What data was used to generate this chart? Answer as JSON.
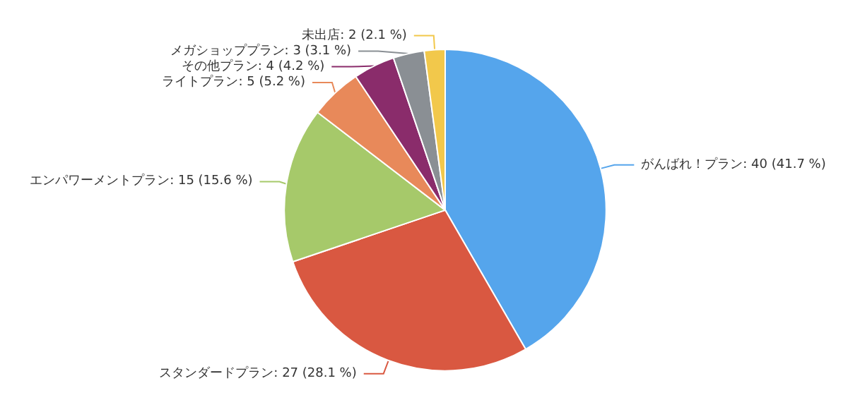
{
  "chart_data": {
    "type": "pie",
    "categories": [
      "がんばれ！プラン",
      "スタンダードプラン",
      "エンパワーメントプラン",
      "ライトプラン",
      "その他プラン",
      "メガショッププラン",
      "未出店"
    ],
    "values": [
      40,
      27,
      15,
      5,
      4,
      3,
      2
    ],
    "value_labels": [
      "40 (41.7 %)",
      "27 (28.1 %)",
      "15 (15.6 %)",
      "5 (5.2 %)",
      "4 (4.2 %)",
      "3 (3.1 %)",
      "2 (2.1 %)"
    ],
    "colors": [
      "#55a5ec",
      "#d95841",
      "#a6c96a",
      "#e8895a",
      "#8a2c6b",
      "#8a8f94",
      "#f2c84b"
    ],
    "legend": false
  }
}
